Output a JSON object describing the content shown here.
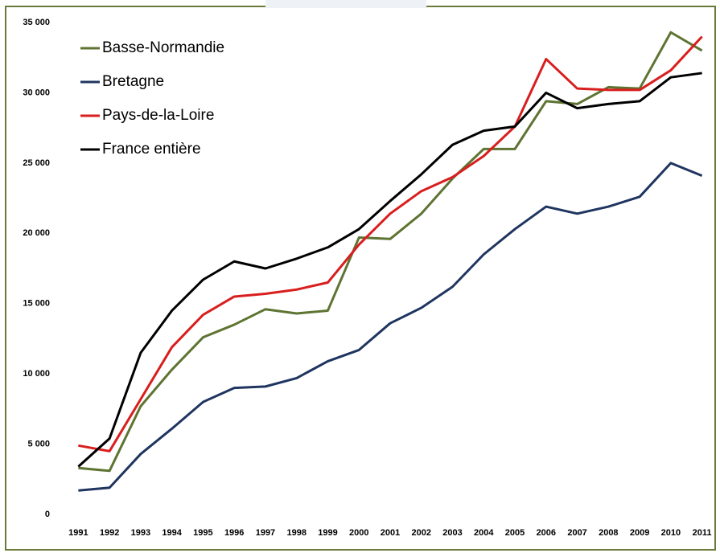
{
  "chart_data": {
    "type": "line",
    "categories": [
      "1991",
      "1992",
      "1993",
      "1994",
      "1995",
      "1996",
      "1997",
      "1998",
      "1999",
      "2000",
      "2001",
      "2002",
      "2003",
      "2004",
      "2005",
      "2006",
      "2007",
      "2008",
      "2009",
      "2010",
      "2011"
    ],
    "series": [
      {
        "name": "Basse-Normandie",
        "color": "#5e7432",
        "values": [
          3300,
          3100,
          7700,
          10300,
          12600,
          13500,
          14600,
          14300,
          14500,
          19700,
          19600,
          21400,
          23900,
          26000,
          26000,
          29400,
          29200,
          30400,
          30300,
          34300,
          33000
        ]
      },
      {
        "name": "Bretagne",
        "color": "#1f3560",
        "values": [
          1700,
          1900,
          4300,
          6100,
          8000,
          9000,
          9100,
          9700,
          10900,
          11700,
          13600,
          14700,
          16200,
          18500,
          20300,
          21900,
          21400,
          21900,
          22600,
          25000,
          24100
        ]
      },
      {
        "name": "Pays-de-la-Loire",
        "color": "#d91e1e",
        "values": [
          4900,
          4500,
          8200,
          11900,
          14200,
          15500,
          15700,
          16000,
          16500,
          19200,
          21400,
          23000,
          24000,
          25500,
          27600,
          32400,
          30300,
          30200,
          30200,
          31600,
          34000
        ]
      },
      {
        "name": "France entière",
        "color": "#000000",
        "values": [
          3400,
          5400,
          11500,
          14500,
          16700,
          18000,
          17500,
          18200,
          19000,
          20300,
          22300,
          24200,
          26300,
          27300,
          27600,
          30000,
          28900,
          29200,
          29400,
          31100,
          31400
        ]
      }
    ],
    "ylim": [
      0,
      35000
    ],
    "yticks": [
      0,
      {
        "value": 5000,
        "label": "5 000"
      },
      {
        "value": 10000,
        "label": "10 000"
      },
      {
        "value": 15000,
        "label": "15 000"
      },
      {
        "value": 20000,
        "label": "20 000"
      },
      {
        "value": 25000,
        "label": "25 000"
      },
      {
        "value": 30000,
        "label": "30 000"
      },
      {
        "value": 35000,
        "label": "35 000"
      }
    ],
    "legend": "upper left"
  }
}
